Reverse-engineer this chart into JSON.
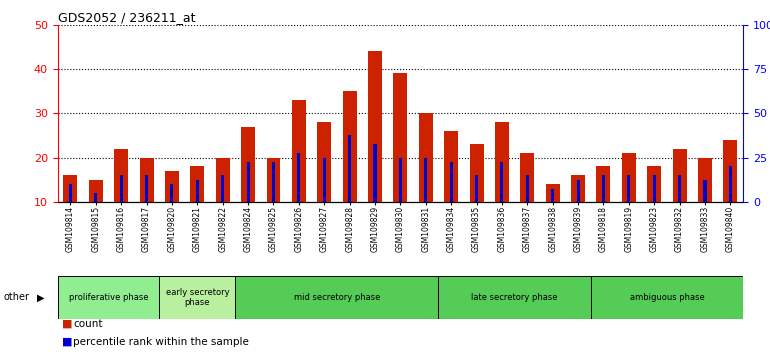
{
  "title": "GDS2052 / 236211_at",
  "samples": [
    "GSM109814",
    "GSM109815",
    "GSM109816",
    "GSM109817",
    "GSM109820",
    "GSM109821",
    "GSM109822",
    "GSM109824",
    "GSM109825",
    "GSM109826",
    "GSM109827",
    "GSM109828",
    "GSM109829",
    "GSM109830",
    "GSM109831",
    "GSM109834",
    "GSM109835",
    "GSM109836",
    "GSM109837",
    "GSM109838",
    "GSM109839",
    "GSM109818",
    "GSM109819",
    "GSM109823",
    "GSM109832",
    "GSM109833",
    "GSM109840"
  ],
  "count_values": [
    16,
    15,
    22,
    20,
    17,
    18,
    20,
    27,
    20,
    33,
    28,
    35,
    44,
    39,
    30,
    26,
    23,
    28,
    21,
    14,
    16,
    18,
    21,
    18,
    22,
    20,
    24
  ],
  "percentile_values": [
    14,
    12,
    16,
    16,
    14,
    15,
    16,
    19,
    19,
    21,
    20,
    25,
    23,
    20,
    20,
    19,
    16,
    19,
    16,
    13,
    15,
    16,
    16,
    16,
    16,
    15,
    18
  ],
  "phases": [
    {
      "label": "proliferative phase",
      "start": 0,
      "end": 4,
      "color": "#90EE90"
    },
    {
      "label": "early secretory\nphase",
      "start": 4,
      "end": 7,
      "color": "#b8f0a0"
    },
    {
      "label": "mid secretory phase",
      "start": 7,
      "end": 15,
      "color": "#55CC55"
    },
    {
      "label": "late secretory phase",
      "start": 15,
      "end": 21,
      "color": "#55CC55"
    },
    {
      "label": "ambiguous phase",
      "start": 21,
      "end": 27,
      "color": "#55CC55"
    }
  ],
  "bar_color_red": "#CC2200",
  "bar_color_blue": "#0000CC",
  "ylim_left": [
    10,
    50
  ],
  "ylim_right": [
    0,
    100
  ],
  "yticks_left": [
    10,
    20,
    30,
    40,
    50
  ],
  "yticks_right": [
    0,
    25,
    50,
    75,
    100
  ],
  "plot_bg": "#ffffff",
  "fig_w": 7.7,
  "fig_h": 3.54
}
